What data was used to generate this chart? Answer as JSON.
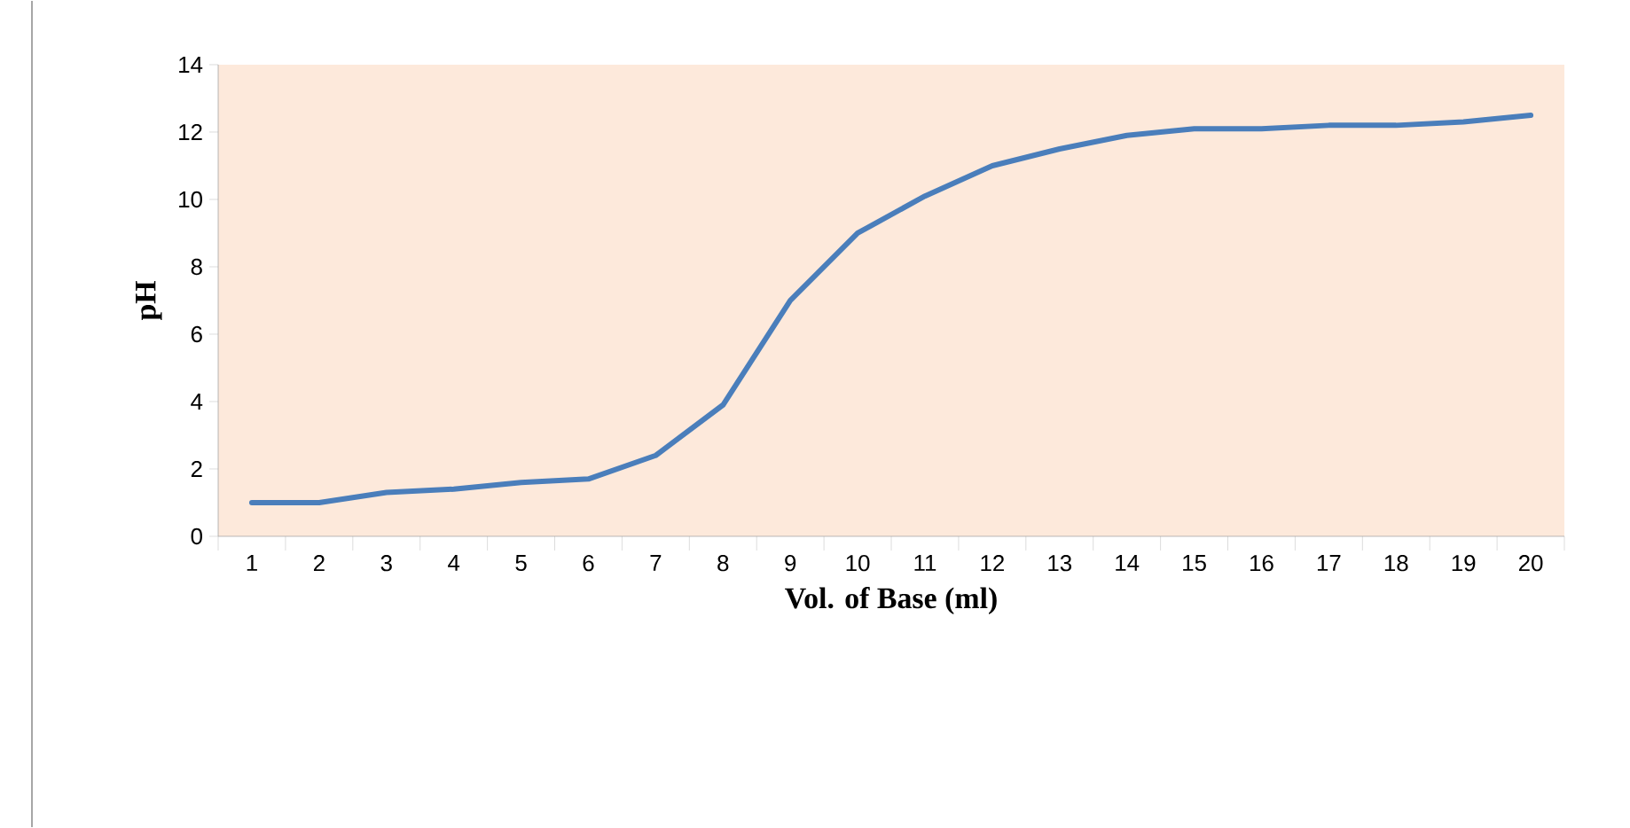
{
  "chart_data": {
    "type": "line",
    "xlabel": "Vol. of  Base (ml)",
    "ylabel": "pH",
    "categories": [
      "1",
      "2",
      "3",
      "4",
      "5",
      "6",
      "7",
      "8",
      "9",
      "10",
      "11",
      "12",
      "13",
      "14",
      "15",
      "16",
      "17",
      "18",
      "19",
      "20"
    ],
    "values": [
      1.0,
      1.0,
      1.3,
      1.4,
      1.6,
      1.7,
      2.4,
      3.9,
      7.0,
      9.0,
      10.1,
      11.0,
      11.5,
      11.9,
      12.1,
      12.1,
      12.2,
      12.2,
      12.3,
      12.5
    ],
    "color": "#4a7ebb",
    "ylim": [
      0,
      14
    ],
    "yticks": [
      0,
      2,
      4,
      6,
      8,
      10,
      12,
      14
    ]
  }
}
